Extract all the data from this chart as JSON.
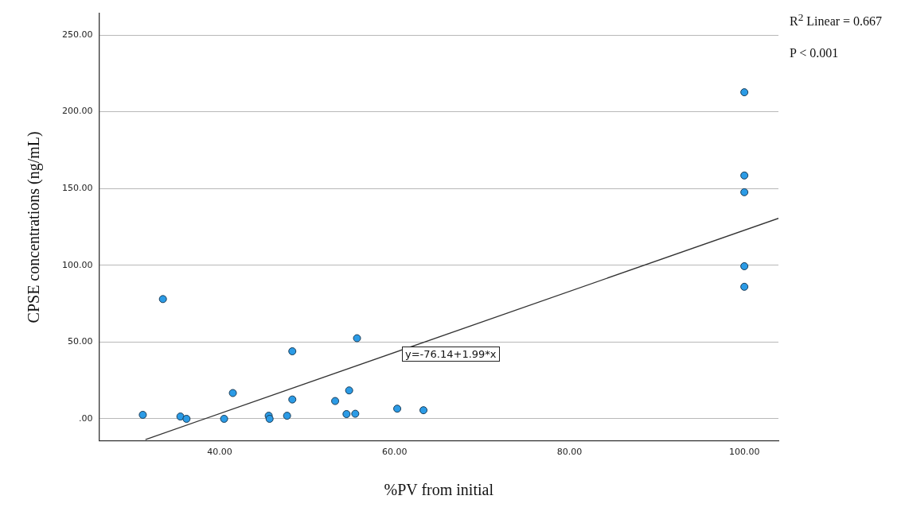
{
  "chart_data": {
    "type": "scatter",
    "xlabel": "%PV from initial",
    "ylabel": "CPSE concentrations (ng/mL)",
    "xlim": [
      26.2,
      103.9
    ],
    "ylim": [
      -14.4,
      264
    ],
    "xticks": [
      {
        "value": 40,
        "label": "40.00"
      },
      {
        "value": 60,
        "label": "60.00"
      },
      {
        "value": 80,
        "label": "80.00"
      },
      {
        "value": 100,
        "label": "100.00"
      }
    ],
    "yticks": [
      {
        "value": 0,
        "label": ".00"
      },
      {
        "value": 50,
        "label": "50.00"
      },
      {
        "value": 100,
        "label": "100.00"
      },
      {
        "value": 150,
        "label": "150.00"
      },
      {
        "value": 200,
        "label": "200.00"
      },
      {
        "value": 250,
        "label": "250.00"
      }
    ],
    "grid": "y",
    "legend": false,
    "series": [
      {
        "marker": "circle",
        "color": "#2b9be6",
        "x": [
          31.2,
          33.5,
          35.5,
          36.2,
          40.5,
          41.5,
          45.6,
          45.7,
          47.7,
          48.3,
          48.3,
          53.2,
          54.5,
          54.8,
          55.5,
          55.7,
          60.3,
          63.3,
          100,
          100,
          100,
          100,
          100
        ],
        "values": [
          2.6,
          78,
          1.5,
          0,
          0,
          16.8,
          2,
          0,
          2,
          44,
          12.6,
          11.6,
          3.1,
          18.5,
          3.3,
          52.5,
          6.6,
          5.6,
          212.7,
          158.5,
          147.6,
          99.4,
          86
        ]
      },
      {
        "type": "line",
        "marker": "none",
        "color": "#333333",
        "x": [
          31.5,
          103.9
        ],
        "values": [
          -13.5,
          130.6
        ]
      }
    ],
    "annotations": [
      "y=-76.14+1.99*x",
      "R$^{2}$ Linear = 0.667",
      "P < 0.001"
    ]
  }
}
